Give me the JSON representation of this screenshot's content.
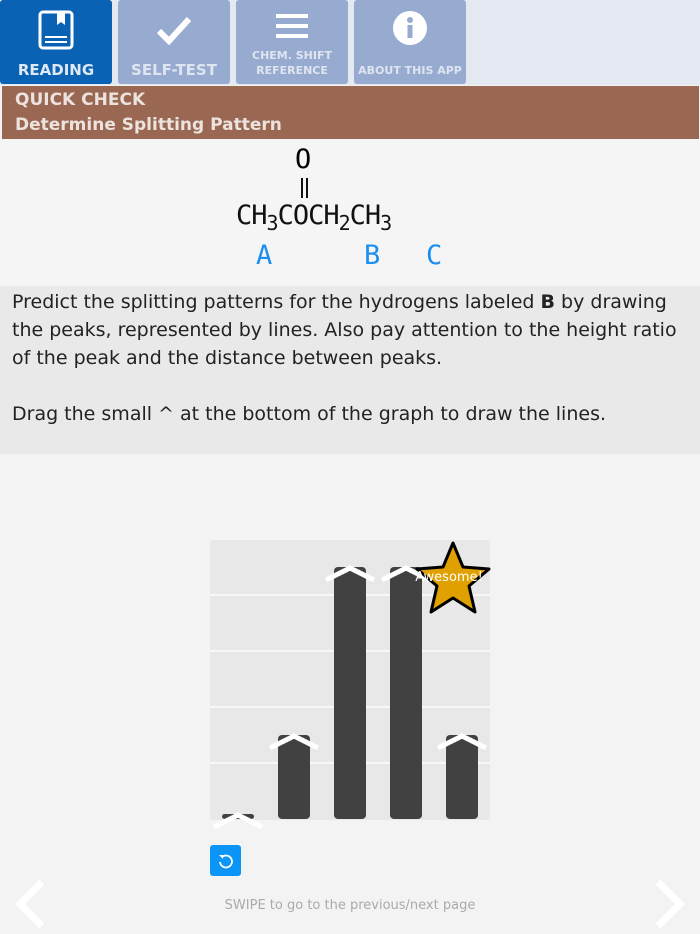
{
  "tabs": [
    {
      "label": "READING",
      "icon": "book-icon",
      "active": true
    },
    {
      "label": "SELF-TEST",
      "icon": "check-icon"
    },
    {
      "label": "CHEM. SHIFT REFERENCE",
      "line1": "CHEM. SHIFT",
      "line2": "REFERENCE",
      "icon": "menu-icon"
    },
    {
      "label": "ABOUT THIS APP",
      "icon": "info-icon"
    }
  ],
  "header": {
    "line1": "QUICK CHECK",
    "line2": "Determine Splitting Pattern"
  },
  "molecule": {
    "oxygen": "O",
    "p1": "CH",
    "s1": "3",
    "p2": "COCH",
    "s2": "2",
    "p3": "CH",
    "s3": "3",
    "labels": [
      "A",
      "B",
      "C"
    ]
  },
  "instructions": {
    "pre": "Predict the splitting patterns for the hydrogens labeled ",
    "bold": "B",
    "post": " by drawing the peaks, represented by lines. Also pay attention to the height ratio of the peak and the distance between peaks.",
    "drag": "Drag the small ^ at the bottom of the graph to draw the lines."
  },
  "chart_data": {
    "type": "bar",
    "values": [
      0,
      1,
      3,
      3,
      1
    ],
    "ylim": [
      0,
      3.33
    ],
    "grid": true,
    "bar_color": "#414141"
  },
  "feedback": {
    "text": "Awesome!",
    "color": "#e0a100"
  },
  "footer": {
    "swipe": "SWIPE to go to the previous/next page"
  },
  "colors": {
    "active_tab": "#0a62b4",
    "header": "#9a6753",
    "label": "#1a8fef",
    "reset": "#0a95f7"
  }
}
